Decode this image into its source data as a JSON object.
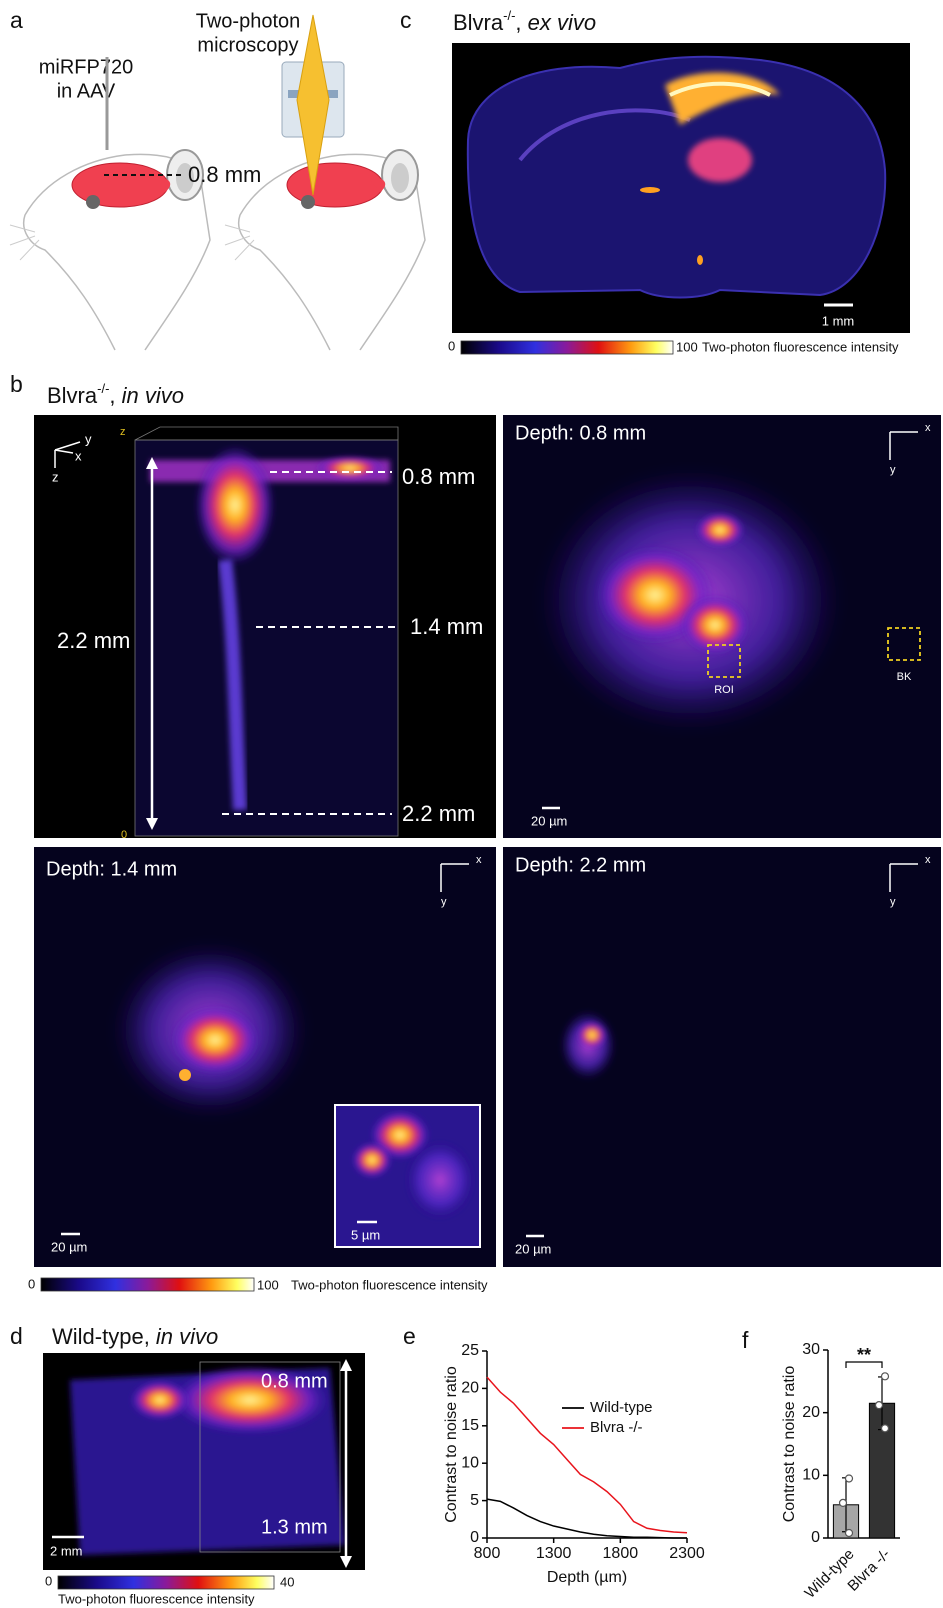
{
  "panels": {
    "a": {
      "label": "a",
      "injection_line1": "miRFP720",
      "injection_line2": "in AAV",
      "depth": "0.8 mm",
      "microscope_line1": "Two-photon",
      "microscope_line2": "microscopy"
    },
    "c": {
      "label": "c",
      "title_name": "Blvra",
      "title_sup": "-/-",
      "title_sep": ", ",
      "title_condition": "ex vivo",
      "scale_bar": "1 mm",
      "colorbar_min": 0,
      "colorbar_max": 100,
      "colorbar_label": "Two-photon fluorescence intensity"
    },
    "b": {
      "label": "b",
      "title_name": "Blvra",
      "title_sup": "-/-",
      "title_sep": ", ",
      "title_condition": "in vivo",
      "volume": {
        "axis_y": "y",
        "axis_x": "x",
        "axis_z": "z",
        "corner_z": "z",
        "corner_zero": 0,
        "total_depth": "2.2 mm",
        "depths": [
          "0.8 mm",
          "1.4 mm",
          "2.2 mm"
        ]
      },
      "slices": [
        {
          "title": "Depth: 0.8 mm",
          "axis_x": "x",
          "axis_y": "y",
          "scale_bar": "20 µm",
          "roi": "ROI",
          "background": "BK"
        },
        {
          "title": "Depth: 1.4 mm",
          "axis_x": "x",
          "axis_y": "y",
          "scale_bar": "20 µm",
          "inset_scale_bar": "5 µm"
        },
        {
          "title": "Depth: 2.2 mm",
          "axis_x": "x",
          "axis_y": "y",
          "scale_bar": "20 µm"
        }
      ],
      "colorbar_min": 0,
      "colorbar_max": 100,
      "colorbar_label": "Two-photon fluorescence intensity"
    },
    "d": {
      "label": "d",
      "title_name": "Wild-type",
      "title_sep": ", ",
      "title_condition": "in vivo",
      "top_depth": "0.8 mm",
      "bottom_depth": "1.3 mm",
      "scale_bar": "2 mm",
      "colorbar_min": 0,
      "colorbar_max": 40,
      "colorbar_label": "Two-photon fluorescence intensity"
    }
  },
  "chart_data": [
    {
      "type": "line",
      "panel_label": "e",
      "xlabel": "Depth (µm)",
      "ylabel": "Contrast to noise ratio",
      "x": [
        800,
        900,
        1000,
        1100,
        1200,
        1300,
        1400,
        1500,
        1600,
        1700,
        1800,
        1900,
        2000,
        2100,
        2200,
        2300
      ],
      "series": [
        {
          "name": "Wild-type",
          "color": "#000000",
          "values": [
            5.2,
            4.9,
            4,
            3,
            2.2,
            1.6,
            1.2,
            0.8,
            0.5,
            0.3,
            0.2,
            0.1,
            0.1,
            0.05,
            0,
            0
          ]
        },
        {
          "name": "Blvra -/-",
          "color": "#e8141c",
          "values": [
            21.5,
            19.5,
            18,
            16,
            14,
            12.5,
            10.5,
            8.5,
            7.5,
            6.2,
            4.5,
            2.2,
            1.3,
            1.0,
            0.8,
            0.7
          ]
        }
      ],
      "xlim": [
        800,
        2300
      ],
      "xticks": [
        800,
        1300,
        1800,
        2300
      ],
      "ylim": [
        0,
        25
      ],
      "yticks": [
        0,
        5,
        10,
        15,
        20,
        25
      ],
      "legend": "right"
    },
    {
      "type": "bar",
      "panel_label": "f",
      "ylabel": "Contrast to noise ratio",
      "categories": [
        "Wild-type",
        "Blvra -/-"
      ],
      "values": [
        5.3,
        21.5
      ],
      "errors": [
        4.3,
        4.2
      ],
      "points": [
        [
          9.5,
          5.6,
          0.8
        ],
        [
          25.8,
          21.2,
          17.5
        ]
      ],
      "colors": [
        "#a6a6a6",
        "#333333"
      ],
      "ylim": [
        0,
        30
      ],
      "yticks": [
        0,
        10,
        20,
        30
      ],
      "significance": "**"
    }
  ]
}
